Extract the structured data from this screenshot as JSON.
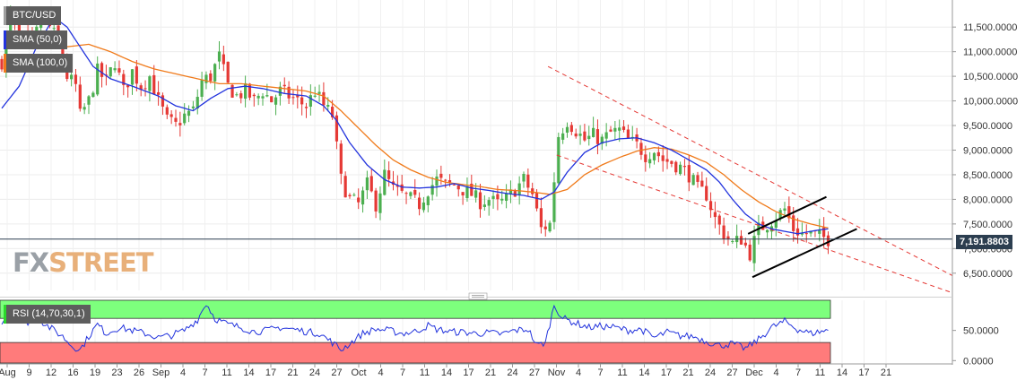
{
  "chart_data": [
    {
      "type": "candlestick",
      "symbol": "BTC/USD",
      "indicators": [
        {
          "name": "SMA (50,0)",
          "color": "#2233dd"
        },
        {
          "name": "SMA (100,0)",
          "color": "#f07a1a"
        }
      ],
      "last_price_label": "7,191.8803",
      "last_price": 7191.88,
      "y_ticks": [
        "6,500.0000",
        "7,000.0000",
        "7,500.0000",
        "8,000.0000",
        "8,500.0000",
        "9,000.0000",
        "9,500.0000",
        "10,000.0000",
        "10,500.0000",
        "11,000.0000",
        "11,500.0000"
      ],
      "y_tick_values": [
        6500,
        7000,
        7500,
        8000,
        8500,
        9000,
        9500,
        10000,
        10500,
        11000,
        11500
      ],
      "ylim": [
        6150,
        12050
      ],
      "x_ticks": [
        "Aug",
        "9",
        "12",
        "16",
        "19",
        "23",
        "26",
        "Sep",
        "4",
        "7",
        "11",
        "14",
        "17",
        "21",
        "24",
        "27",
        "Oct",
        "4",
        "7",
        "11",
        "14",
        "17",
        "21",
        "24",
        "27",
        "Nov",
        "4",
        "7",
        "11",
        "14",
        "17",
        "21",
        "24",
        "27",
        "Dec",
        "4",
        "7",
        "11",
        "14",
        "17",
        "21"
      ],
      "close_anchors": [
        [
          0,
          10800
        ],
        [
          2,
          11700
        ],
        [
          4,
          11300
        ],
        [
          7,
          11200
        ],
        [
          9,
          11600
        ],
        [
          11,
          11500
        ],
        [
          13,
          11200
        ],
        [
          15,
          10500
        ],
        [
          17,
          10300
        ],
        [
          18,
          9700
        ],
        [
          20,
          10000
        ],
        [
          22,
          10600
        ],
        [
          24,
          10400
        ],
        [
          26,
          10800
        ],
        [
          28,
          10200
        ],
        [
          30,
          10600
        ],
        [
          32,
          10300
        ],
        [
          34,
          10500
        ],
        [
          36,
          10000
        ],
        [
          38,
          9600
        ],
        [
          40,
          9500
        ],
        [
          42,
          9700
        ],
        [
          44,
          9800
        ],
        [
          46,
          10400
        ],
        [
          48,
          10500
        ],
        [
          50,
          10900
        ],
        [
          52,
          10300
        ],
        [
          54,
          10100
        ],
        [
          56,
          10200
        ],
        [
          58,
          10000
        ],
        [
          60,
          10200
        ],
        [
          62,
          10000
        ],
        [
          64,
          10200
        ],
        [
          66,
          10100
        ],
        [
          68,
          10000
        ],
        [
          70,
          9900
        ],
        [
          72,
          10200
        ],
        [
          74,
          9900
        ],
        [
          76,
          9700
        ],
        [
          78,
          8400
        ],
        [
          80,
          8000
        ],
        [
          82,
          7900
        ],
        [
          84,
          8300
        ],
        [
          86,
          7900
        ],
        [
          88,
          8500
        ],
        [
          90,
          8200
        ],
        [
          92,
          8100
        ],
        [
          94,
          8000
        ],
        [
          96,
          7900
        ],
        [
          98,
          8200
        ],
        [
          100,
          8400
        ],
        [
          102,
          8300
        ],
        [
          104,
          8300
        ],
        [
          106,
          8200
        ],
        [
          108,
          8100
        ],
        [
          110,
          7950
        ],
        [
          112,
          8000
        ],
        [
          114,
          7900
        ],
        [
          116,
          8000
        ],
        [
          118,
          8200
        ],
        [
          120,
          8400
        ],
        [
          122,
          8100
        ],
        [
          124,
          7400
        ],
        [
          126,
          7500
        ],
        [
          128,
          9300
        ],
        [
          130,
          9600
        ],
        [
          132,
          9400
        ],
        [
          134,
          9200
        ],
        [
          136,
          9300
        ],
        [
          138,
          9200
        ],
        [
          140,
          9350
        ],
        [
          142,
          9400
        ],
        [
          144,
          9200
        ],
        [
          146,
          9100
        ],
        [
          148,
          8900
        ],
        [
          150,
          9000
        ],
        [
          152,
          8800
        ],
        [
          154,
          8750
        ],
        [
          156,
          8650
        ],
        [
          158,
          8500
        ],
        [
          160,
          8200
        ],
        [
          162,
          8100
        ],
        [
          164,
          7600
        ],
        [
          166,
          7300
        ],
        [
          168,
          7100
        ],
        [
          170,
          7200
        ],
        [
          172,
          6900
        ],
        [
          174,
          7400
        ],
        [
          176,
          7500
        ],
        [
          178,
          7650
        ],
        [
          180,
          7800
        ],
        [
          182,
          7400
        ],
        [
          184,
          7300
        ],
        [
          186,
          7300
        ],
        [
          188,
          7250
        ],
        [
          190,
          7192
        ]
      ],
      "sma50_anchors": [
        [
          0,
          9850
        ],
        [
          4,
          10300
        ],
        [
          8,
          11100
        ],
        [
          12,
          11700
        ],
        [
          15,
          11500
        ],
        [
          18,
          11100
        ],
        [
          21,
          10700
        ],
        [
          25,
          10450
        ],
        [
          30,
          10300
        ],
        [
          36,
          10100
        ],
        [
          40,
          9900
        ],
        [
          44,
          9800
        ],
        [
          48,
          10050
        ],
        [
          52,
          10250
        ],
        [
          56,
          10300
        ],
        [
          60,
          10250
        ],
        [
          65,
          10150
        ],
        [
          70,
          10100
        ],
        [
          74,
          9900
        ],
        [
          77,
          9600
        ],
        [
          80,
          9150
        ],
        [
          84,
          8700
        ],
        [
          88,
          8400
        ],
        [
          92,
          8250
        ],
        [
          96,
          8230
        ],
        [
          100,
          8250
        ],
        [
          104,
          8320
        ],
        [
          108,
          8230
        ],
        [
          112,
          8180
        ],
        [
          116,
          8120
        ],
        [
          120,
          8080
        ],
        [
          124,
          8000
        ],
        [
          127,
          8150
        ],
        [
          130,
          8550
        ],
        [
          134,
          8950
        ],
        [
          138,
          9150
        ],
        [
          142,
          9230
        ],
        [
          146,
          9250
        ],
        [
          150,
          9150
        ],
        [
          154,
          9000
        ],
        [
          158,
          8800
        ],
        [
          162,
          8600
        ],
        [
          165,
          8350
        ],
        [
          168,
          8000
        ],
        [
          171,
          7700
        ],
        [
          174,
          7500
        ],
        [
          177,
          7400
        ],
        [
          180,
          7350
        ],
        [
          183,
          7300
        ],
        [
          186,
          7350
        ],
        [
          188,
          7380
        ],
        [
          190,
          7400
        ]
      ],
      "sma100_anchors": [
        [
          15,
          11100
        ],
        [
          20,
          11150
        ],
        [
          25,
          11000
        ],
        [
          30,
          10800
        ],
        [
          35,
          10650
        ],
        [
          40,
          10550
        ],
        [
          45,
          10450
        ],
        [
          50,
          10350
        ],
        [
          55,
          10350
        ],
        [
          60,
          10300
        ],
        [
          65,
          10250
        ],
        [
          70,
          10200
        ],
        [
          74,
          10100
        ],
        [
          78,
          9800
        ],
        [
          82,
          9450
        ],
        [
          86,
          9100
        ],
        [
          90,
          8800
        ],
        [
          94,
          8600
        ],
        [
          98,
          8450
        ],
        [
          102,
          8350
        ],
        [
          106,
          8300
        ],
        [
          110,
          8260
        ],
        [
          114,
          8200
        ],
        [
          118,
          8180
        ],
        [
          122,
          8150
        ],
        [
          126,
          8100
        ],
        [
          130,
          8200
        ],
        [
          134,
          8500
        ],
        [
          138,
          8700
        ],
        [
          142,
          8850
        ],
        [
          146,
          8980
        ],
        [
          150,
          9050
        ],
        [
          154,
          9020
        ],
        [
          158,
          8900
        ],
        [
          162,
          8750
        ],
        [
          166,
          8500
        ],
        [
          170,
          8200
        ],
        [
          174,
          7950
        ],
        [
          178,
          7750
        ],
        [
          182,
          7600
        ],
        [
          186,
          7500
        ],
        [
          190,
          7420
        ]
      ],
      "annotations": {
        "channel_upper": [
          [
            126,
            10700
          ],
          [
            219,
            6450
          ]
        ],
        "channel_lower": [
          [
            128,
            8900
          ],
          [
            219,
            6100
          ]
        ],
        "pattern_upper": [
          [
            172,
            7300
          ],
          [
            190,
            8050
          ]
        ],
        "pattern_lower": [
          [
            173,
            6420
          ],
          [
            197,
            7400
          ]
        ]
      },
      "grid": true,
      "legend_placement": "top-left"
    },
    {
      "type": "line",
      "indicator": "RSI (14,70,30,1)",
      "y_ticks": [
        "0.0000",
        "50.0000"
      ],
      "y_tick_values": [
        0,
        50
      ],
      "overbought": 70,
      "oversold": 30,
      "ylim": [
        -4,
        100
      ],
      "rsi_anchors": [
        [
          0,
          65
        ],
        [
          3,
          80
        ],
        [
          5,
          60
        ],
        [
          8,
          72
        ],
        [
          11,
          55
        ],
        [
          14,
          40
        ],
        [
          16,
          25
        ],
        [
          18,
          18
        ],
        [
          20,
          40
        ],
        [
          22,
          60
        ],
        [
          24,
          45
        ],
        [
          27,
          55
        ],
        [
          30,
          50
        ],
        [
          33,
          45
        ],
        [
          36,
          38
        ],
        [
          39,
          42
        ],
        [
          42,
          50
        ],
        [
          45,
          68
        ],
        [
          47,
          95
        ],
        [
          49,
          70
        ],
        [
          52,
          60
        ],
        [
          55,
          55
        ],
        [
          58,
          48
        ],
        [
          61,
          50
        ],
        [
          64,
          55
        ],
        [
          67,
          52
        ],
        [
          70,
          48
        ],
        [
          73,
          45
        ],
        [
          76,
          30
        ],
        [
          78,
          18
        ],
        [
          80,
          28
        ],
        [
          83,
          45
        ],
        [
          86,
          52
        ],
        [
          89,
          50
        ],
        [
          92,
          45
        ],
        [
          95,
          48
        ],
        [
          98,
          58
        ],
        [
          100,
          52
        ],
        [
          103,
          48
        ],
        [
          106,
          47
        ],
        [
          109,
          45
        ],
        [
          112,
          46
        ],
        [
          115,
          44
        ],
        [
          118,
          50
        ],
        [
          121,
          52
        ],
        [
          123,
          25
        ],
        [
          125,
          30
        ],
        [
          127,
          92
        ],
        [
          129,
          70
        ],
        [
          132,
          62
        ],
        [
          135,
          55
        ],
        [
          138,
          57
        ],
        [
          141,
          55
        ],
        [
          144,
          50
        ],
        [
          147,
          52
        ],
        [
          150,
          38
        ],
        [
          153,
          47
        ],
        [
          156,
          41
        ],
        [
          159,
          40
        ],
        [
          162,
          32
        ],
        [
          165,
          25
        ],
        [
          168,
          28
        ],
        [
          171,
          20
        ],
        [
          174,
          35
        ],
        [
          177,
          55
        ],
        [
          180,
          65
        ],
        [
          183,
          52
        ],
        [
          186,
          45
        ],
        [
          188,
          48
        ],
        [
          190,
          50
        ]
      ]
    }
  ],
  "colors": {
    "up_candle": "#4caf50",
    "down_candle": "#e53935",
    "overbought_zone": "#7dff7d",
    "oversold_zone": "#ff7b7b",
    "last_price_line": "#2c3e50",
    "channel": "#e53935",
    "rsi_line": "#2233dd"
  },
  "logo": {
    "text_main": "FX",
    "text_accent": "STREET"
  }
}
